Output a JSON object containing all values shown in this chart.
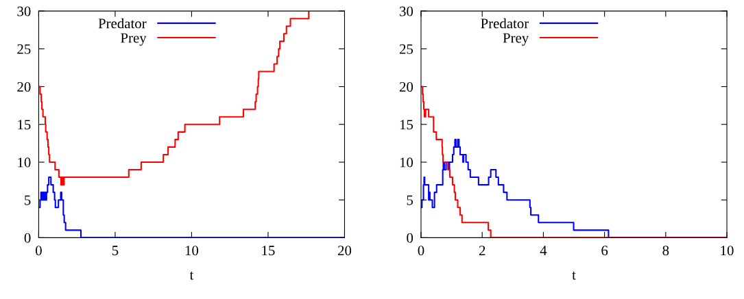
{
  "chart_data": [
    {
      "type": "step",
      "xlabel": "t",
      "xlim": [
        0,
        20
      ],
      "ylim": [
        0,
        30
      ],
      "xticks": [
        0,
        5,
        10,
        15,
        20
      ],
      "yticks": [
        0,
        5,
        10,
        15,
        20,
        25,
        30
      ],
      "legend": "top left",
      "grid": false,
      "series": [
        {
          "name": "Predator",
          "color": "#0000ff",
          "x": [
            0,
            0.09,
            0.15,
            0.2,
            0.27,
            0.33,
            0.4,
            0.45,
            0.51,
            0.58,
            0.66,
            0.8,
            0.95,
            1.04,
            1.09,
            1.29,
            1.44,
            1.5,
            1.61,
            1.67,
            1.76,
            2.76,
            20
          ],
          "values": [
            4,
            5,
            6,
            5,
            6,
            5,
            6,
            5,
            6,
            7,
            8,
            7,
            6,
            5,
            4,
            5,
            6,
            5,
            3,
            2,
            1,
            0,
            0
          ]
        },
        {
          "name": "Prey",
          "color": "#ff0000",
          "x": [
            0,
            0.09,
            0.17,
            0.21,
            0.28,
            0.43,
            0.46,
            0.55,
            0.61,
            0.66,
            0.71,
            1.07,
            1.32,
            1.46,
            1.53,
            1.58,
            1.66,
            5.89,
            6.7,
            8.15,
            8.46,
            8.92,
            9.12,
            9.56,
            11.83,
            13.39,
            14.16,
            14.22,
            14.31,
            14.36,
            14.39,
            15.39,
            15.59,
            15.69,
            15.77,
            16.03,
            16.2,
            16.46,
            17.66
          ],
          "values": [
            20,
            19,
            18,
            17,
            16,
            15,
            14,
            13,
            12,
            11,
            10,
            9,
            8,
            7,
            8,
            7,
            8,
            9,
            10,
            11,
            12,
            13,
            14,
            15,
            16,
            17,
            18,
            19,
            20,
            21,
            22,
            23,
            24,
            25,
            26,
            27,
            28,
            29,
            30
          ]
        }
      ]
    },
    {
      "type": "step",
      "xlabel": "t",
      "xlim": [
        0,
        10
      ],
      "ylim": [
        0,
        30
      ],
      "xticks": [
        0,
        2,
        4,
        6,
        8,
        10
      ],
      "yticks": [
        0,
        5,
        10,
        15,
        20,
        25,
        30
      ],
      "legend": "top left",
      "grid": false,
      "series": [
        {
          "name": "Predator",
          "color": "#0000ff",
          "x": [
            0,
            0.03,
            0.08,
            0.1,
            0.12,
            0.25,
            0.26,
            0.29,
            0.37,
            0.44,
            0.51,
            0.71,
            0.73,
            0.76,
            0.82,
            0.9,
            0.93,
            1.03,
            1.07,
            1.11,
            1.14,
            1.2,
            1.24,
            1.28,
            1.37,
            1.39,
            1.47,
            1.54,
            1.61,
            1.88,
            2.21,
            2.28,
            2.45,
            2.53,
            2.7,
            2.81,
            3.56,
            3.59,
            3.84,
            4.99,
            6.13,
            10
          ],
          "values": [
            4,
            5,
            7,
            8,
            7,
            5,
            6,
            5,
            4,
            6,
            7,
            9,
            10,
            9,
            10,
            9,
            10,
            11,
            12,
            13,
            12,
            13,
            12,
            11,
            10,
            11,
            10,
            9,
            8,
            7,
            8,
            9,
            8,
            7,
            6,
            5,
            4,
            3,
            2,
            1,
            0,
            0
          ]
        },
        {
          "name": "Prey",
          "color": "#ff0000",
          "x": [
            0,
            0.05,
            0.07,
            0.09,
            0.11,
            0.15,
            0.25,
            0.41,
            0.5,
            0.69,
            0.7,
            0.72,
            0.88,
            0.94,
            1.03,
            1.09,
            1.12,
            1.2,
            1.28,
            1.34,
            2.2,
            2.28,
            10
          ],
          "values": [
            20,
            19,
            18,
            17,
            16,
            17,
            16,
            14,
            13,
            12,
            11,
            10,
            9,
            8,
            7,
            6,
            5,
            4,
            3,
            2,
            1,
            0,
            0
          ]
        }
      ]
    }
  ]
}
